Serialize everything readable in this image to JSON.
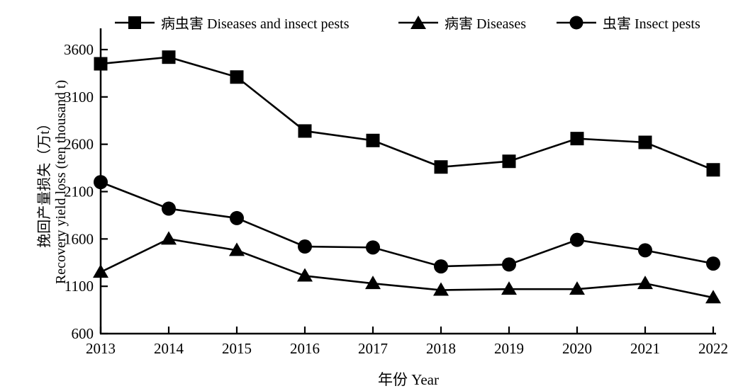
{
  "colors": {
    "foreground": "#000000",
    "background": "#ffffff"
  },
  "chart_data": {
    "type": "line",
    "title": "",
    "xlabel": "年份 Year",
    "ylabel_zh": "挽回产量损失（万t）",
    "ylabel_en": "Recovery yield loss (ten thousand t)",
    "categories": [
      2013,
      2014,
      2015,
      2016,
      2017,
      2018,
      2019,
      2020,
      2021,
      2022
    ],
    "ylim": [
      600,
      3600
    ],
    "yticks": [
      600,
      1100,
      1600,
      2100,
      2600,
      3100,
      3600
    ],
    "grid": false,
    "legend_position": "top",
    "series": [
      {
        "name": "病虫害 Diseases and insect pests",
        "marker": "square",
        "color": "#000000",
        "values": [
          3450,
          3520,
          3310,
          2740,
          2640,
          2360,
          2420,
          2660,
          2620,
          2330
        ]
      },
      {
        "name": "病害 Diseases",
        "marker": "triangle",
        "color": "#000000",
        "values": [
          1250,
          1600,
          1480,
          1210,
          1130,
          1060,
          1070,
          1070,
          1130,
          980
        ]
      },
      {
        "name": "虫害 Insect pests",
        "marker": "circle",
        "color": "#000000",
        "values": [
          2200,
          1920,
          1820,
          1520,
          1510,
          1310,
          1330,
          1590,
          1480,
          1340
        ]
      }
    ]
  }
}
